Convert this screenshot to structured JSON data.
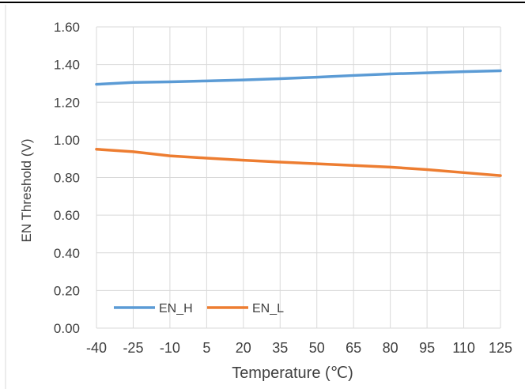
{
  "chart_data": {
    "type": "line",
    "title": "",
    "xlabel": "Temperature (℃)",
    "ylabel": "EN Threshold (V)",
    "x": [
      -40,
      -25,
      -10,
      5,
      20,
      35,
      50,
      65,
      80,
      95,
      110,
      125
    ],
    "x_tick_labels": [
      "-40",
      "-25",
      "-10",
      "5",
      "20",
      "35",
      "50",
      "65",
      "80",
      "95",
      "110",
      "125"
    ],
    "y_tick_labels": [
      "0.00",
      "0.20",
      "0.40",
      "0.60",
      "0.80",
      "1.00",
      "1.20",
      "1.40",
      "1.60"
    ],
    "ylim": [
      0,
      1.6
    ],
    "grid": true,
    "legend_position": "bottom-left",
    "series": [
      {
        "name": "EN_H",
        "color": "#5b9bd5",
        "values": [
          1.295,
          1.305,
          1.308,
          1.313,
          1.318,
          1.325,
          1.333,
          1.342,
          1.35,
          1.356,
          1.362,
          1.367
        ]
      },
      {
        "name": "EN_L",
        "color": "#ed7d31",
        "values": [
          0.95,
          0.937,
          0.915,
          0.903,
          0.892,
          0.882,
          0.873,
          0.864,
          0.855,
          0.842,
          0.826,
          0.81
        ]
      }
    ]
  }
}
